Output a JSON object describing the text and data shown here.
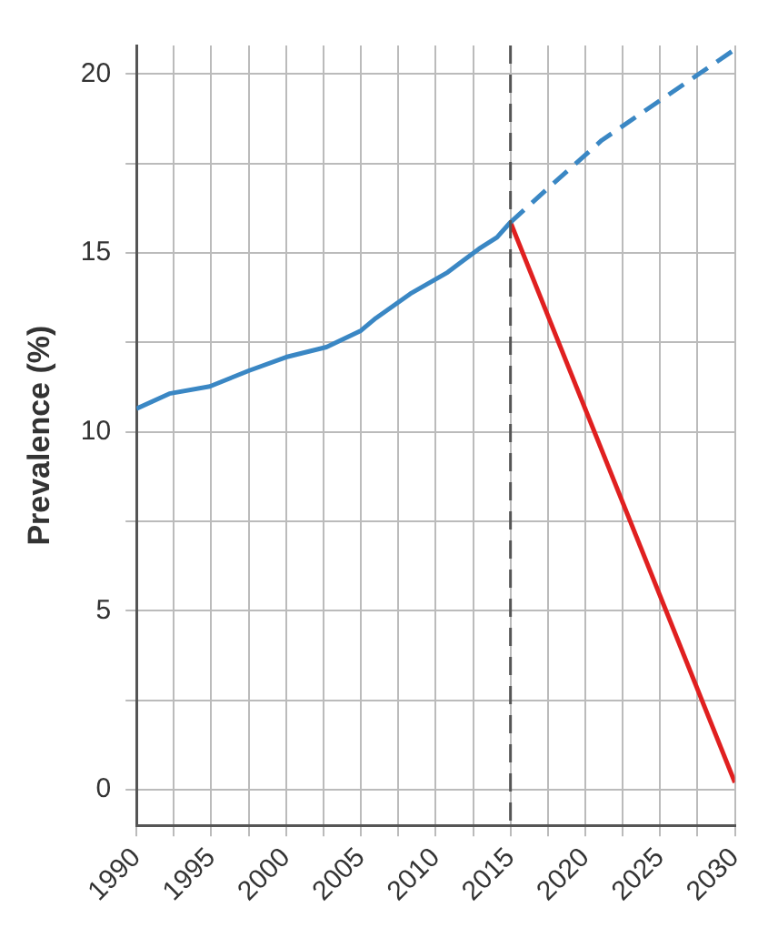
{
  "chart_data": {
    "type": "line",
    "ylabel": "Prevalence (%)",
    "xlim": [
      1990,
      2030
    ],
    "ylim": [
      -1,
      20.8
    ],
    "xticks": [
      1990,
      {
        "value": 1992.5,
        "label": null
      },
      1995,
      {
        "value": 1997.5,
        "label": null
      },
      2000,
      {
        "value": 2002.5,
        "label": null
      },
      2005,
      {
        "value": 2007.5,
        "label": null
      },
      2010,
      {
        "value": 2012.5,
        "label": null
      },
      2015,
      {
        "value": 2017.5,
        "label": null
      },
      2020,
      {
        "value": 2022.5,
        "label": null
      },
      2025,
      {
        "value": 2027.5,
        "label": null
      },
      2030
    ],
    "yticks": [
      0,
      {
        "value": 2.5,
        "label": null
      },
      5,
      {
        "value": 7.5,
        "label": null
      },
      10,
      {
        "value": 12.5,
        "label": null
      },
      15,
      {
        "value": 17.5,
        "label": null
      },
      20
    ],
    "grid": true,
    "legend": false,
    "series": [
      {
        "color": "#3a87c4",
        "x": [
          1990,
          1992.2,
          1994.9,
          1997.5,
          2000,
          2002.7,
          2005,
          2006,
          2008.3,
          2010.8,
          2012.9,
          2014.1,
          2015
        ],
        "values": [
          10.65,
          11.07,
          11.27,
          11.71,
          12.09,
          12.37,
          12.83,
          13.18,
          13.86,
          14.46,
          15.12,
          15.44,
          15.86
        ]
      },
      {
        "color": "#3a87c4",
        "line_style": "dashed",
        "x": [
          2015,
          2017.8,
          2021.1,
          2030
        ],
        "values": [
          15.86,
          16.92,
          18.15,
          20.69
        ]
      },
      {
        "color": "#e02020",
        "x": [
          2015,
          2030
        ],
        "values": [
          15.86,
          0.2
        ]
      }
    ],
    "ref_lines": [
      {
        "axis": "x",
        "value": 2015,
        "color": "#555555",
        "line_style": "dashed"
      }
    ]
  }
}
